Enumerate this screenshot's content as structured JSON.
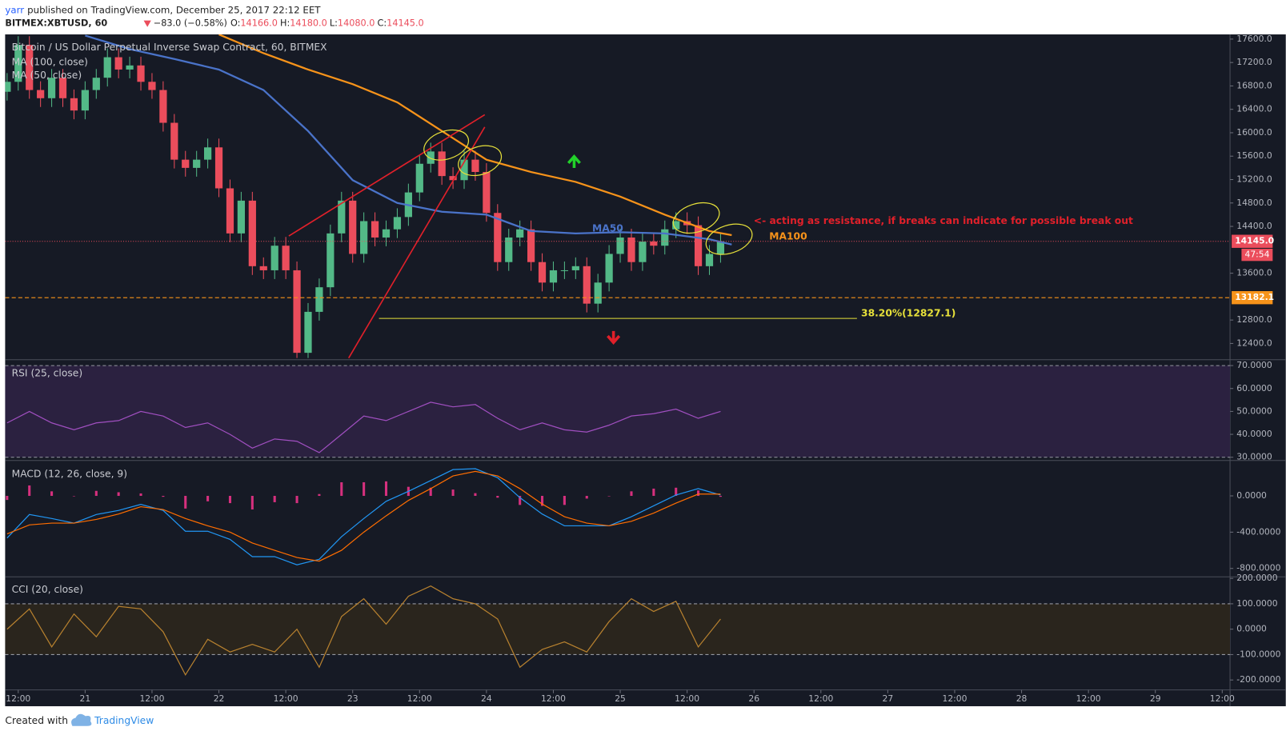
{
  "header": {
    "author": "yarr",
    "published": "published on TradingView.com, December 25, 2017 22:12 EET",
    "symbol": "BITMEX:XBTUSD, 60",
    "change": "−83.0 (−0.58%)",
    "ohlc": [
      [
        "O:",
        "14166.0"
      ],
      [
        "H:",
        "14180.0"
      ],
      [
        "L:",
        "14080.0"
      ],
      [
        "C:",
        "14145.0"
      ]
    ]
  },
  "footer": {
    "created": "Created with",
    "brand": "TradingView"
  },
  "chart_data": [
    {
      "type": "candlestick",
      "title": "Bitcoin / US Dollar Perpetual Inverse Swap Contract, 60, BITMEX",
      "x": [
        -2,
        0,
        2,
        4,
        6,
        8,
        10,
        12,
        14,
        16,
        18,
        20,
        22,
        24,
        26,
        28,
        30,
        32,
        34,
        36,
        38,
        40,
        42,
        44,
        46,
        48,
        50,
        52,
        54,
        56,
        58,
        60,
        62,
        64,
        66,
        68,
        70,
        72,
        74,
        76,
        78,
        80,
        82,
        84,
        86,
        88,
        90,
        92,
        94,
        96,
        98,
        100,
        102,
        104,
        106,
        108,
        110,
        112,
        114,
        116,
        118,
        120,
        122,
        124,
        126
      ],
      "open": [
        16700,
        16870,
        17500,
        16730,
        16590,
        16940,
        16590,
        16380,
        16730,
        16940,
        17290,
        17080,
        17150,
        16870,
        16730,
        16170,
        15540,
        15400,
        15540,
        15750,
        15050,
        14280,
        14840,
        13720,
        13650,
        14070,
        13650,
        12240,
        12940,
        13360,
        14280,
        14840,
        13930,
        14490,
        14210,
        14350,
        14560,
        14980,
        15470,
        15680,
        15260,
        15190,
        15540,
        15330,
        14630,
        13790,
        14210,
        14350,
        13790,
        13440,
        13650,
        13650,
        13720,
        13080,
        13440,
        13930,
        14210,
        13790,
        14140,
        14070,
        14350,
        14490,
        14420,
        13720,
        13930
      ],
      "high": [
        17020,
        17650,
        17650,
        16880,
        17090,
        17090,
        16740,
        16880,
        17090,
        17440,
        17440,
        17300,
        17300,
        17020,
        16880,
        16320,
        15690,
        15690,
        15900,
        15900,
        15200,
        14990,
        14990,
        13870,
        14220,
        14220,
        13800,
        13090,
        13510,
        14430,
        14990,
        14990,
        14640,
        14640,
        14500,
        14710,
        15130,
        15620,
        15830,
        15830,
        15410,
        15690,
        15690,
        15480,
        14780,
        14360,
        14500,
        14500,
        13940,
        13800,
        13800,
        13870,
        13870,
        13590,
        14080,
        14360,
        14360,
        14290,
        14290,
        14500,
        14640,
        14640,
        14570,
        14080,
        14295
      ],
      "low": [
        16550,
        16720,
        16580,
        16440,
        16440,
        16440,
        16230,
        16230,
        16580,
        16790,
        16930,
        16930,
        16720,
        16580,
        16020,
        15390,
        15250,
        15250,
        15390,
        14900,
        14130,
        14130,
        13570,
        13500,
        13500,
        13500,
        12150,
        12150,
        12790,
        13210,
        14130,
        13780,
        13780,
        14060,
        14060,
        14200,
        14410,
        14830,
        15320,
        15110,
        15040,
        15040,
        15180,
        14480,
        13640,
        13640,
        14060,
        13640,
        13290,
        13290,
        13500,
        13500,
        12930,
        12930,
        13290,
        13780,
        13640,
        13640,
        13920,
        13920,
        14200,
        14270,
        13570,
        13570,
        13780
      ],
      "close": [
        16870,
        17500,
        16730,
        16590,
        16940,
        16590,
        16380,
        16730,
        16940,
        17290,
        17080,
        17150,
        16870,
        16730,
        16170,
        15540,
        15400,
        15540,
        15750,
        15050,
        14280,
        14840,
        13720,
        13650,
        14070,
        13650,
        12240,
        12940,
        13360,
        14280,
        14840,
        13930,
        14490,
        14210,
        14350,
        14560,
        14980,
        15470,
        15680,
        15260,
        15190,
        15540,
        15330,
        14630,
        13790,
        14210,
        14350,
        13790,
        13440,
        13650,
        13650,
        13720,
        13080,
        13440,
        13930,
        14210,
        13790,
        14140,
        14070,
        14350,
        14490,
        14420,
        13720,
        13930,
        14145
      ],
      "up_color": "#53b987",
      "down_color": "#eb4d5c",
      "series": [
        {
          "name": "MA (100, close)",
          "color": "#f7931a",
          "x": [
            36,
            44,
            52,
            60,
            68,
            76,
            84,
            92,
            100,
            108,
            116,
            124,
            128
          ],
          "values": [
            17680,
            17360,
            17080,
            16830,
            16520,
            16030,
            15540,
            15330,
            15160,
            14910,
            14600,
            14320,
            14250
          ]
        },
        {
          "name": "MA (50, close)",
          "color": "#4a73c9",
          "x": [
            12,
            20,
            28,
            36,
            44,
            52,
            60,
            68,
            76,
            84,
            92,
            100,
            108,
            116,
            124,
            128
          ],
          "values": [
            17660,
            17430,
            17260,
            17080,
            16730,
            16030,
            15190,
            14800,
            14650,
            14600,
            14320,
            14280,
            14300,
            14280,
            14180,
            14090
          ]
        }
      ],
      "xlim": [
        -2.35,
        217.4
      ],
      "ylim": [
        12150,
        17680
      ],
      "yticks": [
        {
          "value": 17600,
          "label": "17600.0"
        },
        {
          "value": 17200,
          "label": "17200.0"
        },
        {
          "value": 16800,
          "label": "16800.0"
        },
        {
          "value": 16400,
          "label": "16400.0"
        },
        {
          "value": 16000,
          "label": "16000.0"
        },
        {
          "value": 15600,
          "label": "15600.0"
        },
        {
          "value": 15200,
          "label": "15200.0"
        },
        {
          "value": 14800,
          "label": "14800.0"
        },
        {
          "value": 14400,
          "label": "14400.0"
        },
        {
          "value": 13600,
          "label": "13600.0"
        },
        {
          "value": 12800,
          "label": "12800.0"
        },
        {
          "value": 12400,
          "label": "12400.0"
        }
      ],
      "price_lines": [
        {
          "value": 14145,
          "label": "14145.0",
          "color": "#eb4d5c"
        },
        {
          "value": 13182.1,
          "label": "13182.1",
          "color": "#f7931a"
        }
      ],
      "countdown": "47:54",
      "fib": {
        "value": 12827.1,
        "label": "38.20%(12827.1)",
        "color": "#e6e03a"
      },
      "annotations": [
        "MA50",
        "MA100",
        "<- acting as resistance, if breaks can indicate for possible break out"
      ]
    },
    {
      "type": "line",
      "title": "RSI (25, close)",
      "x": [
        -2,
        2,
        6,
        10,
        14,
        18,
        22,
        26,
        30,
        34,
        38,
        42,
        46,
        50,
        54,
        58,
        62,
        66,
        70,
        74,
        78,
        82,
        86,
        90,
        94,
        98,
        102,
        106,
        110,
        114,
        118,
        122,
        126
      ],
      "series": [
        {
          "color": "#a04fc0",
          "values": [
            45,
            50,
            45,
            42,
            45,
            46,
            50,
            48,
            43,
            45,
            40,
            34,
            38,
            37,
            32,
            40,
            48,
            46,
            50,
            54,
            52,
            53,
            47,
            42,
            45,
            42,
            41,
            44,
            48,
            49,
            51,
            47,
            50
          ]
        }
      ],
      "band": [
        30,
        70
      ],
      "band_color": "#2b2140",
      "xlim": [
        -2.35,
        217.4
      ],
      "ylim": [
        29.3,
        72.2
      ],
      "yticks": [
        {
          "value": 70,
          "label": "70.0000"
        },
        {
          "value": 60,
          "label": "60.0000"
        },
        {
          "value": 50,
          "label": "50.0000"
        },
        {
          "value": 40,
          "label": "40.0000"
        },
        {
          "value": 30,
          "label": "30.0000"
        }
      ]
    },
    {
      "type": "line",
      "title": "MACD (12, 26, close, 9)",
      "x": [
        -2,
        2,
        6,
        10,
        14,
        18,
        22,
        26,
        30,
        34,
        38,
        42,
        46,
        50,
        54,
        58,
        62,
        66,
        70,
        74,
        78,
        82,
        86,
        90,
        94,
        98,
        102,
        106,
        110,
        114,
        118,
        122,
        126
      ],
      "series": [
        {
          "color": "#d6307e",
          "style": "histogram",
          "values": [
            -45,
            115,
            50,
            0,
            55,
            40,
            27,
            -10,
            -140,
            -60,
            -80,
            -150,
            -70,
            -80,
            20,
            150,
            150,
            160,
            100,
            90,
            70,
            30,
            -20,
            -100,
            -110,
            -100,
            -30,
            0,
            50,
            80,
            90,
            60,
            -10
          ]
        },
        {
          "color": "#2196f3",
          "values": [
            -465,
            -205,
            -250,
            -300,
            -205,
            -160,
            -93,
            -160,
            -390,
            -390,
            -480,
            -670,
            -670,
            -760,
            -700,
            -450,
            -250,
            -60,
            50,
            170,
            290,
            300,
            200,
            -20,
            -200,
            -330,
            -330,
            -330,
            -230,
            -110,
            10,
            80,
            10
          ]
        },
        {
          "color": "#ff6d00",
          "values": [
            -420,
            -320,
            -300,
            -300,
            -260,
            -200,
            -120,
            -150,
            -250,
            -330,
            -400,
            -520,
            -600,
            -680,
            -720,
            -600,
            -400,
            -220,
            -50,
            80,
            220,
            270,
            220,
            80,
            -90,
            -230,
            -300,
            -330,
            -280,
            -190,
            -80,
            20,
            20
          ]
        }
      ],
      "xlim": [
        -2.35,
        217.4
      ],
      "ylim": [
        -884,
        381
      ],
      "yticks": [
        {
          "value": 0,
          "label": "0.0000"
        },
        {
          "value": -400,
          "label": "-400.0000"
        },
        {
          "value": -800,
          "label": "-800.0000"
        }
      ]
    },
    {
      "type": "line",
      "title": "CCI (20, close)",
      "x": [
        -2,
        2,
        6,
        10,
        14,
        18,
        22,
        26,
        30,
        34,
        38,
        42,
        46,
        50,
        54,
        58,
        62,
        66,
        70,
        74,
        78,
        82,
        86,
        90,
        94,
        98,
        102,
        106,
        110,
        114,
        118,
        122,
        126
      ],
      "series": [
        {
          "color": "#b7812f",
          "values": [
            0,
            80,
            -70,
            60,
            -30,
            90,
            80,
            -10,
            -180,
            -40,
            -90,
            -60,
            -90,
            0,
            -150,
            50,
            120,
            20,
            130,
            170,
            120,
            100,
            40,
            -150,
            -80,
            -50,
            -90,
            30,
            120,
            70,
            110,
            -70,
            40
          ]
        }
      ],
      "band": [
        -100,
        100
      ],
      "band_color": "#2a251d",
      "xlim": [
        -2.35,
        217.4
      ],
      "ylim": [
        -236,
        206
      ],
      "yticks": [
        {
          "value": 200,
          "label": "200.0000"
        },
        {
          "value": 100,
          "label": "100.0000"
        },
        {
          "value": 0,
          "label": "0.0000"
        },
        {
          "value": -100,
          "label": "-100.0000"
        },
        {
          "value": -200,
          "label": "-200.0000"
        }
      ],
      "xticks": [
        {
          "value": 0,
          "label": "12:00"
        },
        {
          "value": 12,
          "label": "21"
        },
        {
          "value": 24,
          "label": "12:00"
        },
        {
          "value": 36,
          "label": "22"
        },
        {
          "value": 48,
          "label": "12:00"
        },
        {
          "value": 60,
          "label": "23"
        },
        {
          "value": 72,
          "label": "12:00"
        },
        {
          "value": 84,
          "label": "24"
        },
        {
          "value": 96,
          "label": "12:00"
        },
        {
          "value": 108,
          "label": "25"
        },
        {
          "value": 120,
          "label": "12:00"
        },
        {
          "value": 132,
          "label": "26"
        },
        {
          "value": 144,
          "label": "12:00"
        },
        {
          "value": 156,
          "label": "27"
        },
        {
          "value": 168,
          "label": "12:00"
        },
        {
          "value": 180,
          "label": "28"
        },
        {
          "value": 192,
          "label": "12:00"
        },
        {
          "value": 204,
          "label": "29"
        },
        {
          "value": 216,
          "label": "12:00"
        }
      ]
    }
  ]
}
